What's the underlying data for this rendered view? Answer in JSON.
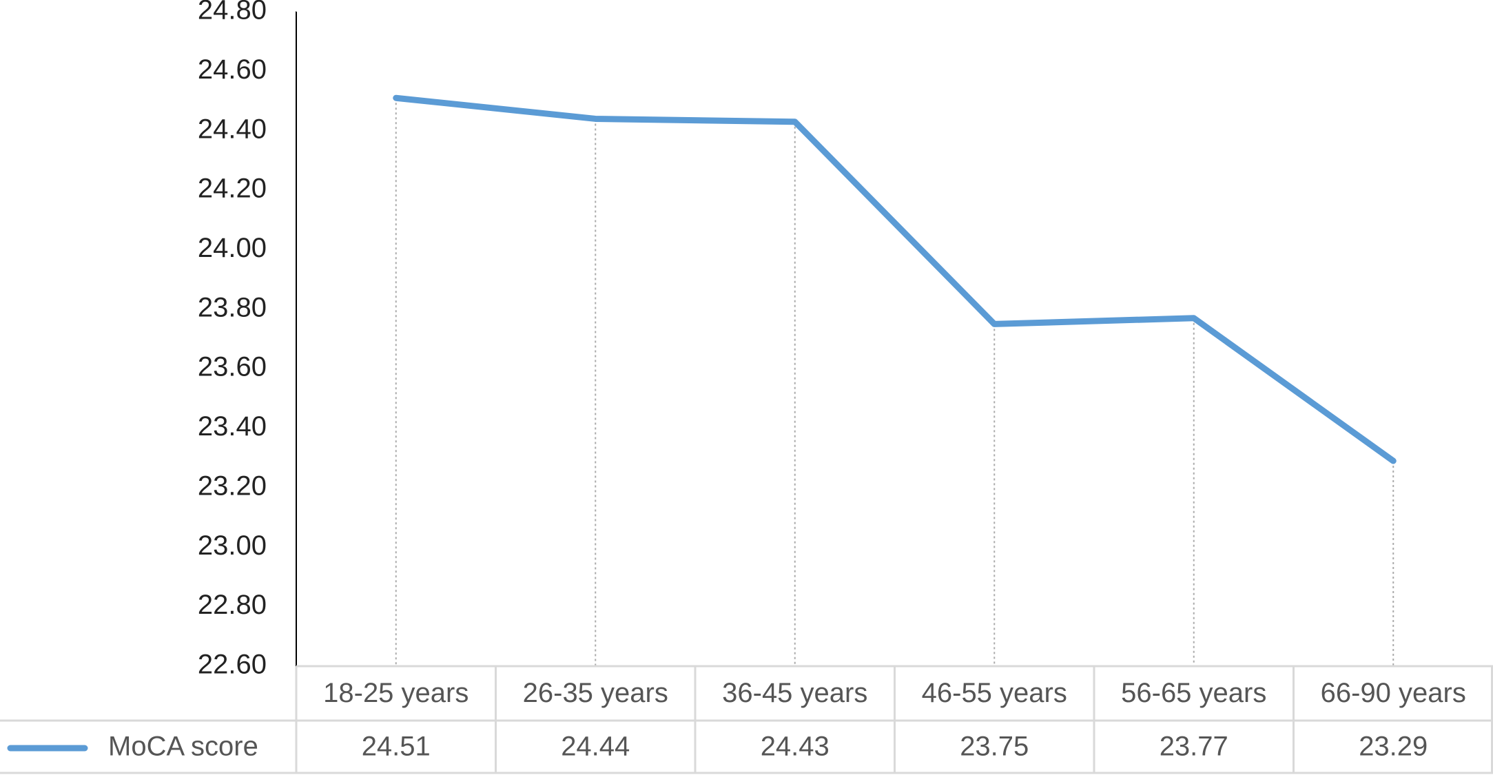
{
  "chart_data": {
    "type": "line",
    "categories": [
      "18-25 years",
      "26-35 years",
      "36-45 years",
      "46-55 years",
      "56-65 years",
      "66-90 years"
    ],
    "series": [
      {
        "name": "MoCA score",
        "color": "#5b9bd5",
        "values": [
          24.51,
          24.44,
          24.43,
          23.75,
          23.77,
          23.29
        ]
      }
    ],
    "ylim": [
      22.6,
      24.8
    ],
    "yticks": [
      {
        "value": 22.6,
        "label": "22.60"
      },
      {
        "value": 22.8,
        "label": "22.80"
      },
      {
        "value": 23,
        "label": "23.00"
      },
      {
        "value": 23.2,
        "label": "23.20"
      },
      {
        "value": 23.4,
        "label": "23.40"
      },
      {
        "value": 23.6,
        "label": "23.60"
      },
      {
        "value": 23.8,
        "label": "23.80"
      },
      {
        "value": 24,
        "label": "24.00"
      },
      {
        "value": 24.2,
        "label": "24.20"
      },
      {
        "value": 24.4,
        "label": "24.40"
      },
      {
        "value": 24.6,
        "label": "24.60"
      },
      {
        "value": 24.8,
        "label": "24.80"
      }
    ],
    "drop_lines": true,
    "data_table": true
  }
}
